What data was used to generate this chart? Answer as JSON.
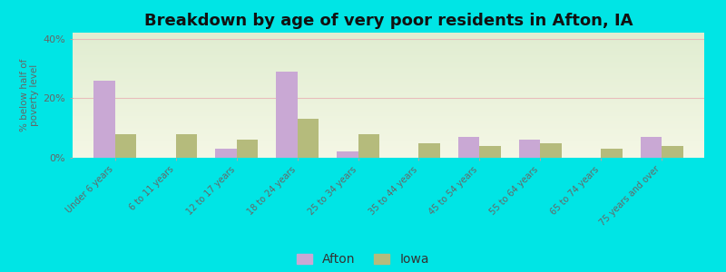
{
  "title": "Breakdown by age of very poor residents in Afton, IA",
  "categories": [
    "Under 6 years",
    "6 to 11 years",
    "12 to 17 years",
    "18 to 24 years",
    "25 to 34 years",
    "35 to 44 years",
    "45 to 54 years",
    "55 to 64 years",
    "65 to 74 years",
    "75 years and over"
  ],
  "afton_values": [
    26,
    0,
    3,
    29,
    2,
    0,
    7,
    6,
    0,
    7
  ],
  "iowa_values": [
    8,
    8,
    6,
    13,
    8,
    5,
    4,
    5,
    3,
    4
  ],
  "afton_color": "#c9a8d4",
  "iowa_color": "#b5bb7c",
  "ylabel": "% below half of\npoverty level",
  "ylim": [
    0,
    42
  ],
  "yticks": [
    0,
    20,
    40
  ],
  "ytick_labels": [
    "0%",
    "20%",
    "40%"
  ],
  "background_color": "#00e5e5",
  "bar_width": 0.35,
  "legend_labels": [
    "Afton",
    "Iowa"
  ],
  "grid_color": "#e8b8b8",
  "title_fontsize": 13
}
